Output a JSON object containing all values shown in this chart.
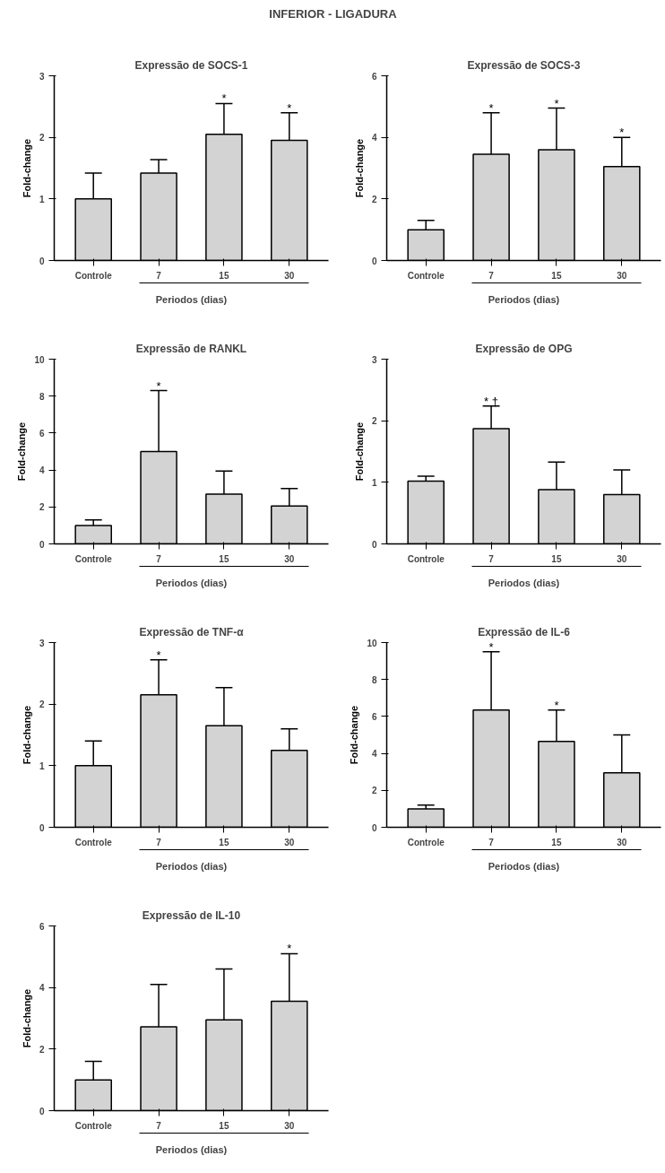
{
  "chart_data": [
    {
      "type": "other",
      "title": "INFERIOR - LIGADURA"
    },
    {
      "type": "bar",
      "title": "Expressão de SOCS-1",
      "xlabel": "Periodos (dias)",
      "ylabel": "Fold-change",
      "categories": [
        "Controle",
        "7",
        "15",
        "30"
      ],
      "values": [
        1.0,
        1.42,
        2.05,
        1.95
      ],
      "errors": [
        [
          1.0,
          1.42
        ],
        [
          1.42,
          1.64
        ],
        [
          2.05,
          2.55
        ],
        [
          1.95,
          2.4
        ]
      ],
      "color": "#d3d3d3",
      "ylim": [
        0,
        3
      ],
      "yticks": [
        0,
        1,
        2,
        3
      ],
      "annotations": [
        {
          "text": "*",
          "x": "15",
          "y": 2.55
        },
        {
          "text": "*",
          "x": "30",
          "y": 2.4
        }
      ]
    },
    {
      "type": "bar",
      "title": "Expressão de SOCS-3",
      "xlabel": "Periodos (dias)",
      "ylabel": "Fold-change",
      "categories": [
        "Controle",
        "7",
        "15",
        "30"
      ],
      "values": [
        1.0,
        3.45,
        3.6,
        3.05
      ],
      "errors": [
        [
          1.0,
          1.3
        ],
        [
          3.45,
          4.8
        ],
        [
          3.6,
          4.95
        ],
        [
          3.05,
          4.0
        ]
      ],
      "color": "#d3d3d3",
      "ylim": [
        0,
        6
      ],
      "yticks": [
        0,
        2,
        4,
        6
      ],
      "annotations": [
        {
          "text": "*",
          "x": "7",
          "y": 4.8
        },
        {
          "text": "*",
          "x": "15",
          "y": 4.95
        },
        {
          "text": "*",
          "x": "30",
          "y": 4.0
        }
      ]
    },
    {
      "type": "bar",
      "title": "Expressão de RANKL",
      "xlabel": "Periodos (dias)",
      "ylabel": "Fold-change",
      "categories": [
        "Controle",
        "7",
        "15",
        "30"
      ],
      "values": [
        1.0,
        5.0,
        2.7,
        2.05
      ],
      "errors": [
        [
          1.0,
          1.3
        ],
        [
          5.0,
          8.3
        ],
        [
          2.7,
          3.95
        ],
        [
          2.05,
          3.0
        ]
      ],
      "color": "#d3d3d3",
      "ylim": [
        0,
        10
      ],
      "yticks": [
        0,
        2,
        4,
        6,
        8,
        10
      ],
      "annotations": [
        {
          "text": "*",
          "x": "7",
          "y": 8.3
        }
      ]
    },
    {
      "type": "bar",
      "title": "Expressão de OPG",
      "xlabel": "Periodos (dias)",
      "ylabel": "Fold-change",
      "categories": [
        "Controle",
        "7",
        "15",
        "30"
      ],
      "values": [
        1.02,
        1.87,
        0.88,
        0.8
      ],
      "errors": [
        [
          1.02,
          1.1
        ],
        [
          1.87,
          2.24
        ],
        [
          0.88,
          1.33
        ],
        [
          0.8,
          1.2
        ]
      ],
      "color": "#d3d3d3",
      "ylim": [
        0,
        3
      ],
      "yticks": [
        0,
        1,
        2,
        3
      ],
      "annotations": [
        {
          "text": "* †",
          "x": "7",
          "y": 2.24
        }
      ]
    },
    {
      "type": "bar",
      "title": "Expressão de TNF-α",
      "xlabel": "Periodos (dias)",
      "ylabel": "Fold-change",
      "categories": [
        "Controle",
        "7",
        "15",
        "30"
      ],
      "values": [
        1.0,
        2.15,
        1.65,
        1.25
      ],
      "errors": [
        [
          1.0,
          1.4
        ],
        [
          2.15,
          2.72
        ],
        [
          1.65,
          2.27
        ],
        [
          1.25,
          1.6
        ]
      ],
      "color": "#d3d3d3",
      "ylim": [
        0,
        3
      ],
      "yticks": [
        0,
        1,
        2,
        3
      ],
      "annotations": [
        {
          "text": "*",
          "x": "7",
          "y": 2.72
        }
      ]
    },
    {
      "type": "bar",
      "title": "Expressão de IL-6",
      "xlabel": "Periodos (dias)",
      "ylabel": "Fold-change",
      "categories": [
        "Controle",
        "7",
        "15",
        "30"
      ],
      "values": [
        1.0,
        6.35,
        4.65,
        2.95
      ],
      "errors": [
        [
          1.0,
          1.2
        ],
        [
          6.35,
          9.5
        ],
        [
          4.65,
          6.35
        ],
        [
          2.95,
          5.0
        ]
      ],
      "color": "#d3d3d3",
      "ylim": [
        0,
        10
      ],
      "yticks": [
        0,
        2,
        4,
        6,
        8,
        10
      ],
      "annotations": [
        {
          "text": "*",
          "x": "7",
          "y": 9.5
        },
        {
          "text": "*",
          "x": "15",
          "y": 6.35
        }
      ]
    },
    {
      "type": "bar",
      "title": "Expressão de IL-10",
      "xlabel": "Periodos (dias)",
      "ylabel": "Fold-change",
      "categories": [
        "Controle",
        "7",
        "15",
        "30"
      ],
      "values": [
        1.0,
        2.72,
        2.95,
        3.55
      ],
      "errors": [
        [
          1.0,
          1.6
        ],
        [
          2.72,
          4.1
        ],
        [
          2.95,
          4.6
        ],
        [
          3.55,
          5.1
        ]
      ],
      "color": "#d3d3d3",
      "ylim": [
        0,
        6
      ],
      "yticks": [
        0,
        2,
        4,
        6
      ],
      "annotations": [
        {
          "text": "*",
          "x": "30",
          "y": 5.1
        }
      ]
    }
  ]
}
